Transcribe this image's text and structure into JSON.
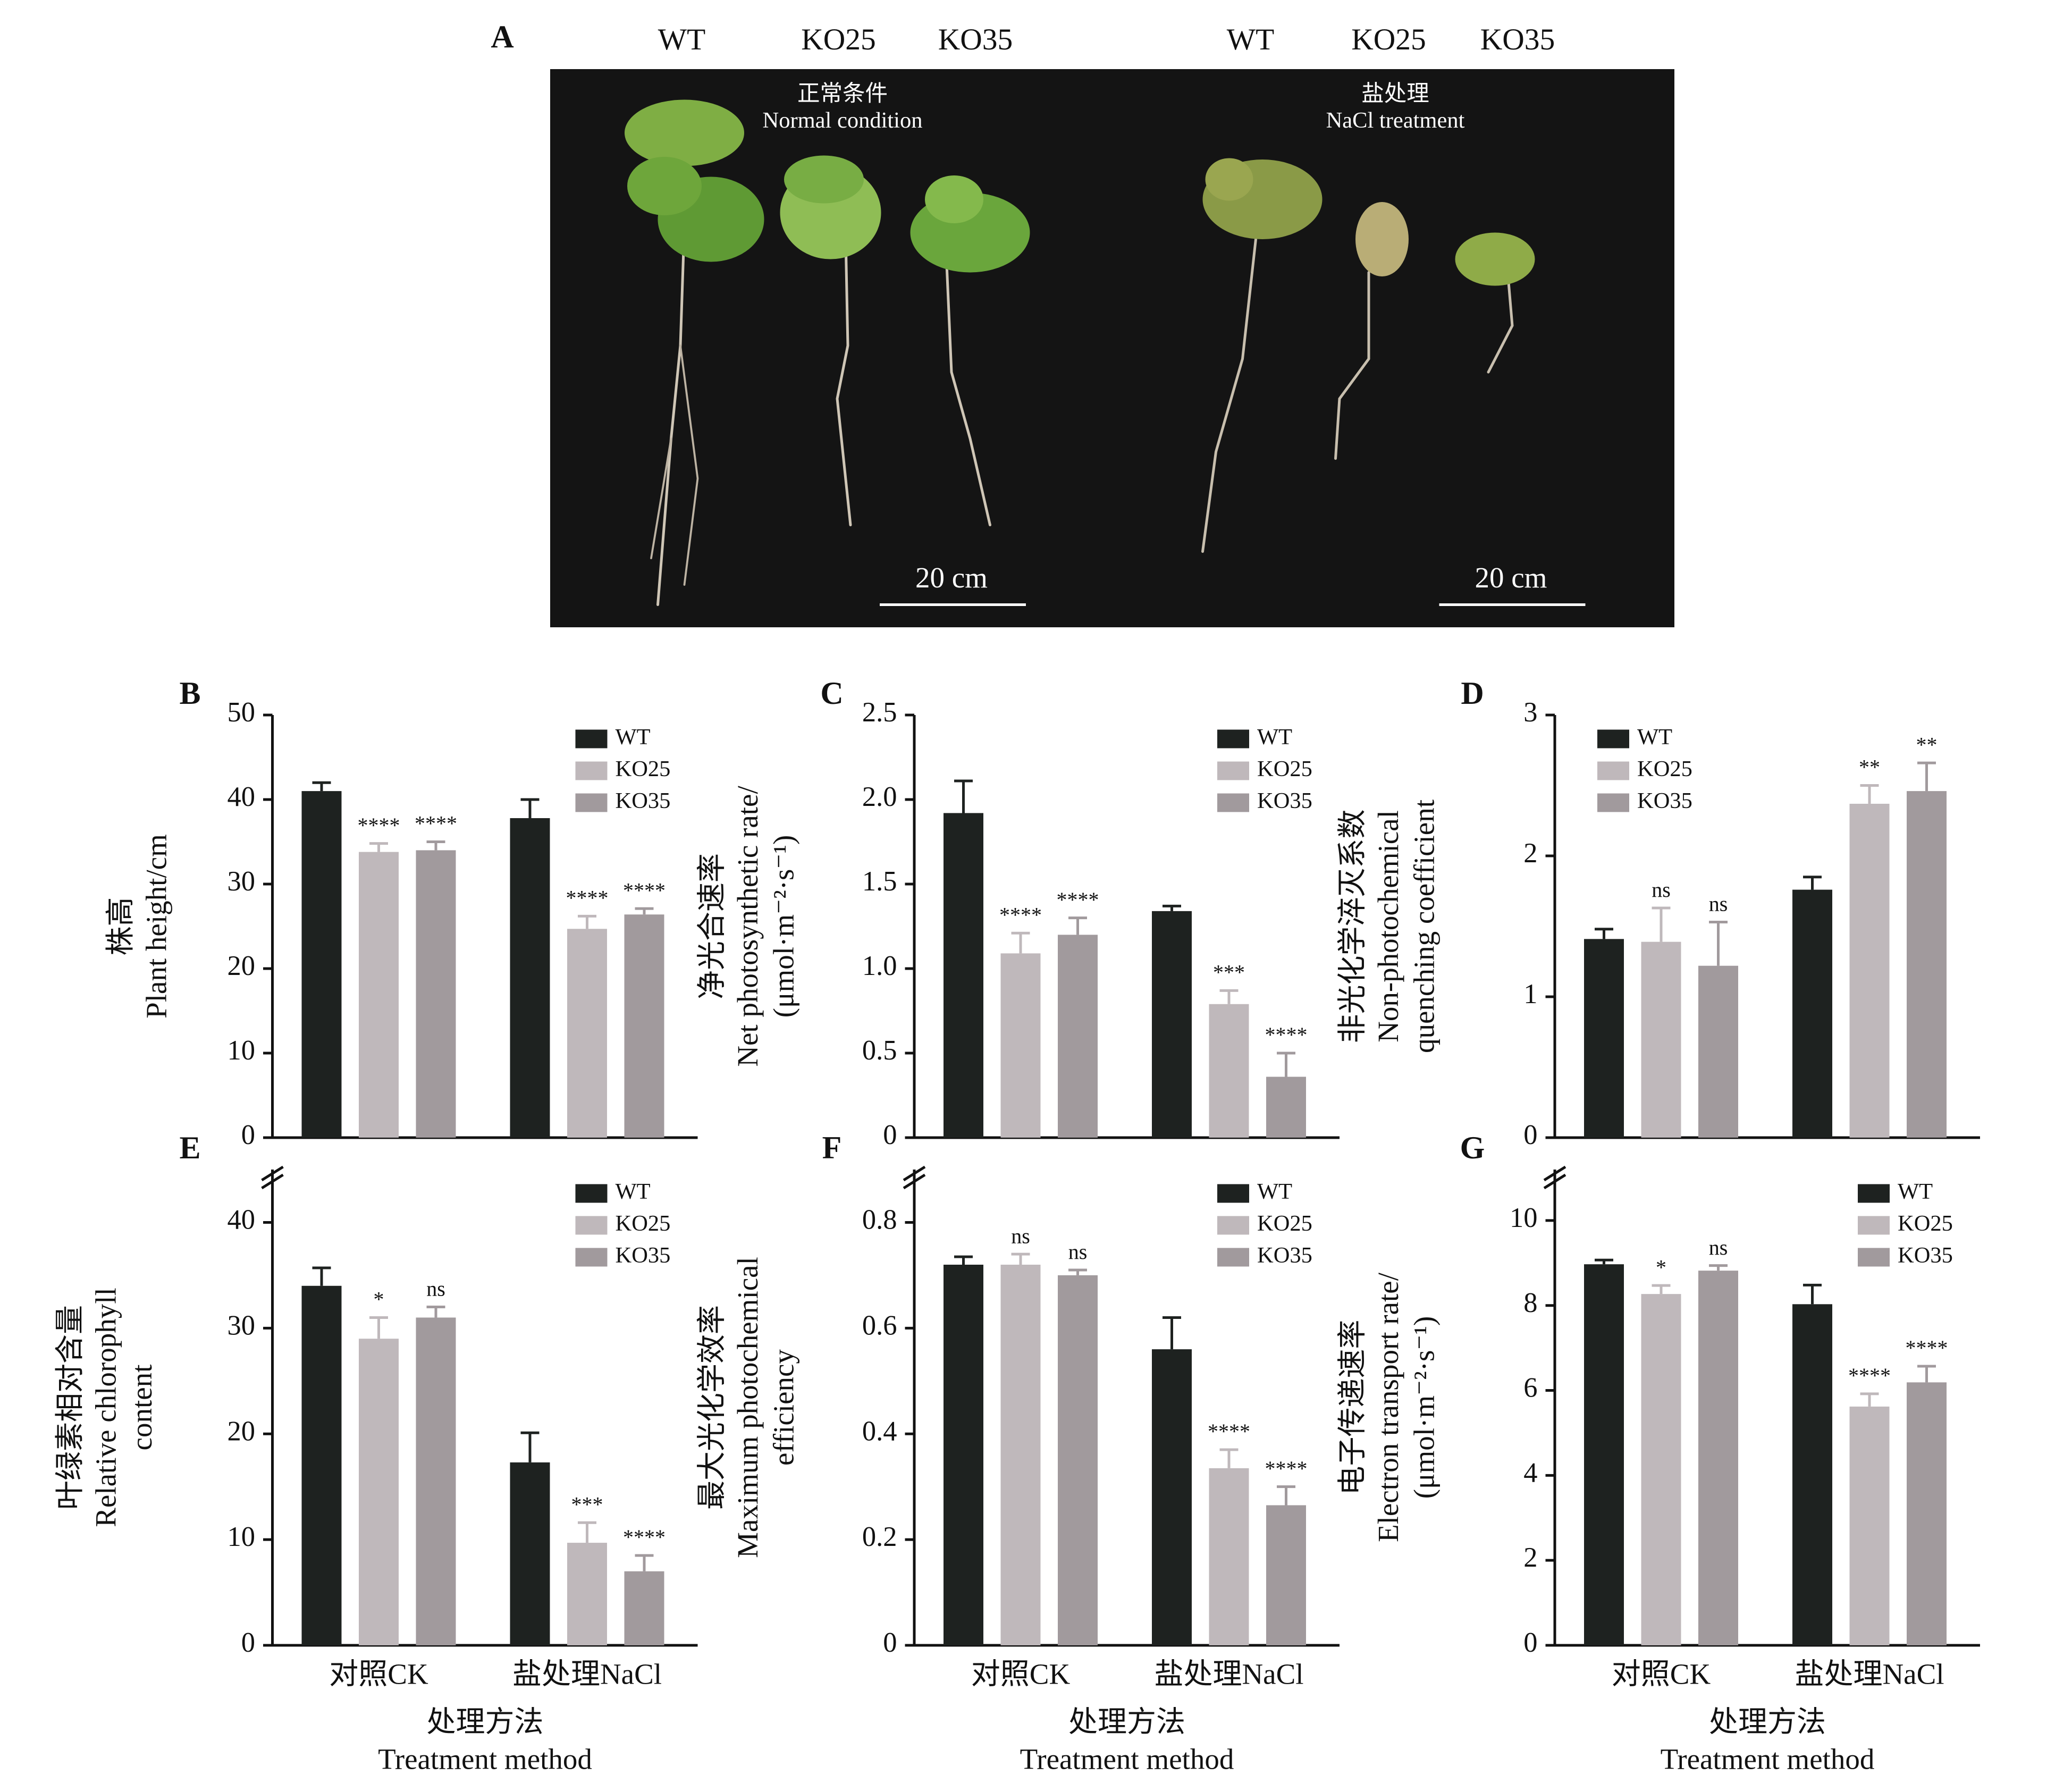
{
  "photo": {
    "panel": "A",
    "genotype_labels": [
      "WT",
      "KO25",
      "KO35",
      "WT",
      "KO25",
      "KO35"
    ],
    "conditions": [
      {
        "zh": "正常条件",
        "en": "Normal condition"
      },
      {
        "zh": "盐处理",
        "en": "NaCl treatment"
      }
    ],
    "scale_bars": [
      "20 cm",
      "20 cm"
    ]
  },
  "chart_data": [
    {
      "type": "bar",
      "panel": "B",
      "ylabel": [
        "株高",
        "Plant height/cm"
      ],
      "categories": [
        null,
        null
      ],
      "ylim": [
        0,
        50
      ],
      "yticks": [
        0,
        10,
        20,
        30,
        40,
        50
      ],
      "legend": "upper right",
      "series": [
        {
          "name": "WT",
          "color": "#1e2220",
          "values": [
            41,
            37.8
          ],
          "errors": [
            1,
            2.2
          ]
        },
        {
          "name": "KO25",
          "color": "#bfb8bb",
          "values": [
            33.8,
            24.7
          ],
          "errors": [
            1,
            1.5
          ],
          "significance": [
            "****",
            "****"
          ]
        },
        {
          "name": "KO35",
          "color": "#a19a9d",
          "values": [
            34,
            26.4
          ],
          "errors": [
            1,
            0.7
          ],
          "significance": [
            "****",
            "****"
          ]
        }
      ]
    },
    {
      "type": "bar",
      "panel": "C",
      "ylabel": [
        "净光合速率",
        "Net photosynthetic rate/",
        "(μmol·m⁻²·s⁻¹)"
      ],
      "categories": [
        null,
        null
      ],
      "ylim": [
        0,
        2.5
      ],
      "yticks": [
        0,
        0.5,
        {
          "value": 1,
          "label": "1.0"
        },
        1.5,
        {
          "value": 2,
          "label": "2.0"
        },
        2.5
      ],
      "legend": "upper right",
      "series": [
        {
          "name": "WT",
          "color": "#1e2220",
          "values": [
            1.92,
            1.34
          ],
          "errors": [
            0.19,
            0.03
          ]
        },
        {
          "name": "KO25",
          "color": "#bfb8bb",
          "values": [
            1.09,
            0.79
          ],
          "errors": [
            0.12,
            0.08
          ],
          "significance": [
            "****",
            "***"
          ]
        },
        {
          "name": "KO35",
          "color": "#a19a9d",
          "values": [
            1.2,
            0.36
          ],
          "errors": [
            0.1,
            0.14
          ],
          "significance": [
            "****",
            "****"
          ]
        }
      ]
    },
    {
      "type": "bar",
      "panel": "D",
      "ylabel": [
        "非光化学淬灭系数",
        "Non-photochemical",
        "quenching coefficient"
      ],
      "categories": [
        null,
        null
      ],
      "ylim": [
        0,
        3
      ],
      "yticks": [
        0,
        1,
        2,
        3
      ],
      "legend": "upper left",
      "series": [
        {
          "name": "WT",
          "color": "#1e2220",
          "values": [
            1.41,
            1.76
          ],
          "errors": [
            0.07,
            0.09
          ]
        },
        {
          "name": "KO25",
          "color": "#bfb8bb",
          "values": [
            1.39,
            2.37
          ],
          "errors": [
            0.24,
            0.13
          ],
          "significance": [
            "ns",
            "**"
          ]
        },
        {
          "name": "KO35",
          "color": "#a19a9d",
          "values": [
            1.22,
            2.46
          ],
          "errors": [
            0.31,
            0.2
          ],
          "significance": [
            "ns",
            "**"
          ]
        }
      ]
    },
    {
      "type": "bar",
      "panel": "E",
      "ylabel": [
        "叶绿素相对含量",
        "Relative chlorophyll",
        "content"
      ],
      "categories": [
        "对照CK",
        "盐处理NaCl"
      ],
      "xlabel": [
        "处理方法",
        "Treatment method"
      ],
      "ylim": [
        0,
        45
      ],
      "yticks": [
        0,
        10,
        20,
        30,
        40
      ],
      "axis_break": true,
      "legend": "upper right",
      "series": [
        {
          "name": "WT",
          "color": "#1e2220",
          "values": [
            34,
            17.3
          ],
          "errors": [
            1.7,
            2.8
          ]
        },
        {
          "name": "KO25",
          "color": "#bfb8bb",
          "values": [
            29,
            9.7
          ],
          "errors": [
            2,
            1.9
          ],
          "significance": [
            "*",
            "***"
          ]
        },
        {
          "name": "KO35",
          "color": "#a19a9d",
          "values": [
            31,
            7
          ],
          "errors": [
            1,
            1.5
          ],
          "significance": [
            "ns",
            "****"
          ]
        }
      ]
    },
    {
      "type": "bar",
      "panel": "F",
      "ylabel": [
        "最大光化学效率",
        "Maximum photochemical",
        "efficiency"
      ],
      "categories": [
        "对照CK",
        "盐处理NaCl"
      ],
      "xlabel": [
        "处理方法",
        "Treatment method"
      ],
      "ylim": [
        0,
        0.9
      ],
      "yticks": [
        0,
        0.2,
        0.4,
        0.6,
        0.8
      ],
      "axis_break": true,
      "legend": "upper right",
      "series": [
        {
          "name": "WT",
          "color": "#1e2220",
          "values": [
            0.72,
            0.56
          ],
          "errors": [
            0.015,
            0.06
          ]
        },
        {
          "name": "KO25",
          "color": "#bfb8bb",
          "values": [
            0.72,
            0.335
          ],
          "errors": [
            0.02,
            0.035
          ],
          "significance": [
            "ns",
            "****"
          ]
        },
        {
          "name": "KO35",
          "color": "#a19a9d",
          "values": [
            0.7,
            0.265
          ],
          "errors": [
            0.01,
            0.035
          ],
          "significance": [
            "ns",
            "****"
          ]
        }
      ]
    },
    {
      "type": "bar",
      "panel": "G",
      "ylabel": [
        "电子传递速率",
        "Electron transport rate/",
        "(μmol·m⁻²·s⁻¹)"
      ],
      "categories": [
        "对照CK",
        "盐处理NaCl"
      ],
      "xlabel": [
        "处理方法",
        "Treatment method"
      ],
      "ylim": [
        0,
        11.2
      ],
      "yticks": [
        0,
        2,
        4,
        6,
        8,
        10
      ],
      "axis_break": true,
      "legend": "upper right",
      "series": [
        {
          "name": "WT",
          "color": "#1e2220",
          "values": [
            8.97,
            8.03
          ],
          "errors": [
            0.1,
            0.45
          ]
        },
        {
          "name": "KO25",
          "color": "#bfb8bb",
          "values": [
            8.27,
            5.62
          ],
          "errors": [
            0.2,
            0.3
          ],
          "significance": [
            "*",
            "****"
          ]
        },
        {
          "name": "KO35",
          "color": "#a19a9d",
          "values": [
            8.82,
            6.19
          ],
          "errors": [
            0.12,
            0.38
          ],
          "significance": [
            "ns",
            "****"
          ]
        }
      ]
    }
  ]
}
